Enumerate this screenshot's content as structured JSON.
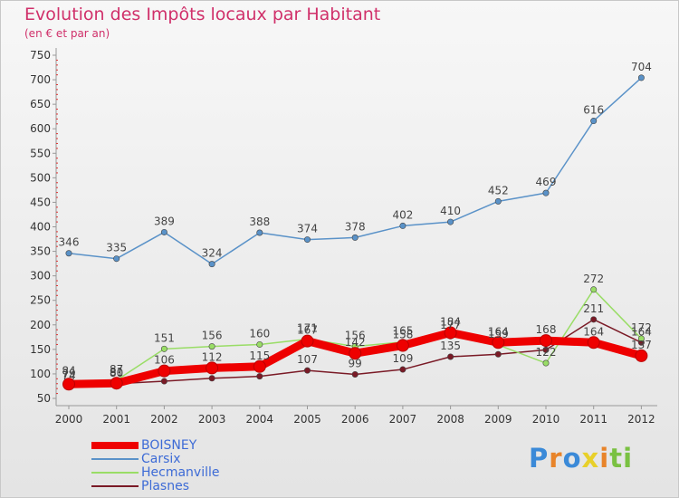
{
  "title": "Evolution des Impôts locaux par Habitant",
  "subtitle": "(en € et par an)",
  "logo": {
    "text": "Proxiti",
    "letter_colors": [
      "#3b8ad8",
      "#e8842a",
      "#3b8ad8",
      "#e8d02a",
      "#e8842a",
      "#7ac142",
      "#7ac142"
    ]
  },
  "chart_data": {
    "type": "line",
    "categories": [
      "2000",
      "2001",
      "2002",
      "2003",
      "2004",
      "2005",
      "2006",
      "2007",
      "2008",
      "2009",
      "2010",
      "2011",
      "2012"
    ],
    "ylim": [
      50,
      750
    ],
    "yticks": [
      50,
      100,
      150,
      200,
      250,
      300,
      350,
      400,
      450,
      500,
      550,
      600,
      650,
      700,
      750
    ],
    "grid": false,
    "legend_position": "bottom-left",
    "series": [
      {
        "name": "Plasnes",
        "color": "#7a1a26",
        "values": [
          74,
          80,
          85,
          91,
          95,
          107,
          99,
          109,
          135,
          140,
          149,
          211,
          164
        ],
        "labels": [
          "74",
          "80",
          "",
          "",
          "",
          "107",
          "99",
          "109",
          "135",
          "",
          "",
          "211",
          "164"
        ]
      },
      {
        "name": "Hecmanville",
        "color": "#99dd66",
        "values": [
          84,
          87,
          151,
          156,
          160,
          171,
          156,
          165,
          177,
          159,
          122,
          272,
          172
        ],
        "labels": [
          "84",
          "87",
          "151",
          "156",
          "160",
          "171",
          "156",
          "165",
          "177",
          "159",
          "122",
          "272",
          "172"
        ]
      },
      {
        "name": "Carsix",
        "color": "#5a92c8",
        "values": [
          346,
          335,
          389,
          324,
          388,
          374,
          378,
          402,
          410,
          452,
          469,
          616,
          704
        ],
        "labels": [
          "346",
          "335",
          "389",
          "324",
          "388",
          "374",
          "378",
          "402",
          "410",
          "452",
          "469",
          "616",
          "704"
        ]
      },
      {
        "name": "BOISNEY",
        "color": "#ee0000",
        "values": [
          79,
          81,
          106,
          112,
          115,
          167,
          142,
          158,
          184,
          164,
          168,
          164,
          137
        ],
        "labels": [
          "79",
          "81",
          "106",
          "112",
          "115",
          "167",
          "142",
          "158",
          "184",
          "164",
          "168",
          "164",
          "137"
        ]
      }
    ]
  },
  "legend": [
    {
      "label": "BOISNEY",
      "color": "#ee0000",
      "thickness": 8
    },
    {
      "label": "Carsix",
      "color": "#5a92c8",
      "thickness": 2
    },
    {
      "label": "Hecmanville",
      "color": "#99dd66",
      "thickness": 2
    },
    {
      "label": "Plasnes",
      "color": "#7a1a26",
      "thickness": 2
    }
  ]
}
